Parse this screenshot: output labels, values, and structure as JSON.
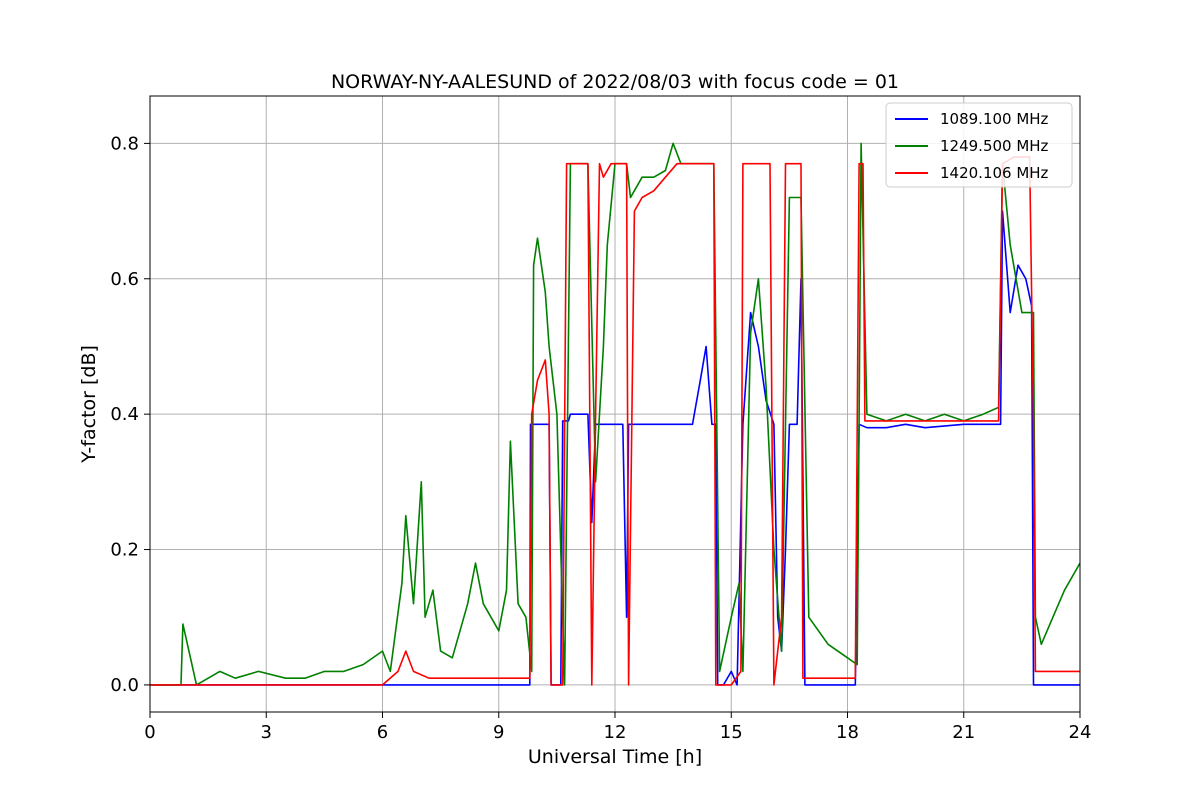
{
  "chart_data": {
    "type": "line",
    "title": "NORWAY-NY-AALESUND of 2022/08/03 with focus code = 01",
    "xlabel": "Universal Time [h]",
    "ylabel": "Y-factor [dB]",
    "xlim": [
      0,
      24
    ],
    "ylim": [
      -0.04,
      0.87
    ],
    "x_ticks": [
      0,
      3,
      6,
      9,
      12,
      15,
      18,
      21,
      24
    ],
    "x_tick_labels": [
      "0",
      "3",
      "6",
      "9",
      "12",
      "15",
      "18",
      "21",
      "24"
    ],
    "y_ticks": [
      0.0,
      0.2,
      0.4,
      0.6,
      0.8
    ],
    "y_tick_labels": [
      "0.0",
      "0.2",
      "0.4",
      "0.6",
      "0.8"
    ],
    "grid": true,
    "legend_position": "top-right",
    "series": [
      {
        "name": "1089.100 MHz",
        "color": "#0000ff",
        "x": [
          0,
          9.8,
          9.82,
          10.3,
          10.35,
          10.6,
          10.65,
          10.8,
          10.85,
          11.3,
          11.4,
          11.5,
          11.55,
          12.2,
          12.3,
          12.35,
          13.0,
          14.0,
          14.2,
          14.35,
          14.5,
          14.6,
          14.65,
          14.8,
          15.0,
          15.15,
          15.3,
          15.5,
          15.7,
          15.9,
          16.1,
          16.2,
          16.3,
          16.4,
          16.5,
          16.7,
          16.8,
          16.9,
          18.2,
          18.3,
          18.5,
          19.0,
          19.5,
          20.0,
          21.0,
          21.95,
          22.0,
          22.2,
          22.4,
          22.6,
          22.75,
          22.8,
          24
        ],
        "y": [
          0,
          0,
          0.385,
          0.385,
          0.0,
          0.0,
          0.39,
          0.39,
          0.4,
          0.4,
          0.24,
          0.385,
          0.385,
          0.385,
          0.1,
          0.385,
          0.385,
          0.385,
          0.45,
          0.5,
          0.385,
          0.385,
          0.0,
          0.0,
          0.02,
          0.0,
          0.385,
          0.55,
          0.5,
          0.42,
          0.385,
          0.1,
          0.05,
          0.2,
          0.385,
          0.385,
          0.6,
          0.0,
          0.0,
          0.385,
          0.38,
          0.38,
          0.385,
          0.38,
          0.385,
          0.385,
          0.7,
          0.55,
          0.62,
          0.6,
          0.56,
          0.0,
          0.0
        ]
      },
      {
        "name": "1249.500 MHz",
        "color": "#008000",
        "x": [
          0,
          0.6,
          0.8,
          0.85,
          1.2,
          1.8,
          2.2,
          2.8,
          3.5,
          4.0,
          4.5,
          5.0,
          5.5,
          6.0,
          6.2,
          6.5,
          6.6,
          6.8,
          7.0,
          7.1,
          7.3,
          7.5,
          7.8,
          8.0,
          8.2,
          8.4,
          8.6,
          8.8,
          9.0,
          9.2,
          9.3,
          9.5,
          9.7,
          9.85,
          9.9,
          10.0,
          10.2,
          10.3,
          10.5,
          10.7,
          10.85,
          11.0,
          11.3,
          11.5,
          11.7,
          11.8,
          12.0,
          12.3,
          12.4,
          12.7,
          13.0,
          13.3,
          13.5,
          13.7,
          14.0,
          14.3,
          14.55,
          14.7,
          15.0,
          15.2,
          15.3,
          15.5,
          15.7,
          15.9,
          16.1,
          16.3,
          16.5,
          16.8,
          17.0,
          17.5,
          18.0,
          18.25,
          18.3,
          18.35,
          18.5,
          19.0,
          19.5,
          20.0,
          20.5,
          21.0,
          21.5,
          21.9,
          22.0,
          22.2,
          22.5,
          22.8,
          22.85,
          23.0,
          23.3,
          23.6,
          24
        ],
        "y": [
          0,
          0.0,
          0.0,
          0.09,
          0.0,
          0.02,
          0.01,
          0.02,
          0.01,
          0.01,
          0.02,
          0.02,
          0.03,
          0.05,
          0.02,
          0.15,
          0.25,
          0.12,
          0.3,
          0.1,
          0.14,
          0.05,
          0.04,
          0.08,
          0.12,
          0.18,
          0.12,
          0.1,
          0.08,
          0.14,
          0.36,
          0.12,
          0.1,
          0.02,
          0.62,
          0.66,
          0.58,
          0.5,
          0.4,
          0.0,
          0.77,
          0.77,
          0.77,
          0.3,
          0.5,
          0.65,
          0.77,
          0.77,
          0.72,
          0.75,
          0.75,
          0.76,
          0.8,
          0.77,
          0.77,
          0.77,
          0.77,
          0.02,
          0.1,
          0.15,
          0.02,
          0.52,
          0.6,
          0.44,
          0.2,
          0.05,
          0.72,
          0.72,
          0.1,
          0.06,
          0.04,
          0.03,
          0.39,
          0.8,
          0.4,
          0.39,
          0.4,
          0.39,
          0.4,
          0.39,
          0.4,
          0.41,
          0.77,
          0.65,
          0.55,
          0.55,
          0.1,
          0.06,
          0.1,
          0.14,
          0.18
        ]
      },
      {
        "name": "1420.106 MHz",
        "color": "#ff0000",
        "x": [
          0,
          6.0,
          6.4,
          6.6,
          6.8,
          7.2,
          8.0,
          9.0,
          9.8,
          9.85,
          10.0,
          10.2,
          10.3,
          10.35,
          10.6,
          10.65,
          10.75,
          10.8,
          11.2,
          11.3,
          11.4,
          11.5,
          11.6,
          11.7,
          11.9,
          12.1,
          12.3,
          12.35,
          12.5,
          12.7,
          13.0,
          13.3,
          13.6,
          14.0,
          14.4,
          14.55,
          14.6,
          14.7,
          15.0,
          15.25,
          15.3,
          15.4,
          15.6,
          15.7,
          16.0,
          16.1,
          16.2,
          16.3,
          16.4,
          16.5,
          16.8,
          16.85,
          17.5,
          18.2,
          18.25,
          18.3,
          18.4,
          18.45,
          19.0,
          20.0,
          21.0,
          21.9,
          22.0,
          22.3,
          22.7,
          22.8,
          22.85,
          23.5,
          24
        ],
        "y": [
          0,
          0.0,
          0.02,
          0.05,
          0.02,
          0.01,
          0.01,
          0.01,
          0.01,
          0.4,
          0.45,
          0.48,
          0.4,
          0.0,
          0.0,
          0.0,
          0.77,
          0.77,
          0.77,
          0.77,
          0.0,
          0.4,
          0.77,
          0.75,
          0.77,
          0.77,
          0.77,
          0.0,
          0.7,
          0.72,
          0.73,
          0.75,
          0.77,
          0.77,
          0.77,
          0.77,
          0.0,
          0.0,
          0.0,
          0.02,
          0.77,
          0.77,
          0.77,
          0.77,
          0.77,
          0.0,
          0.05,
          0.1,
          0.77,
          0.77,
          0.77,
          0.01,
          0.01,
          0.01,
          0.38,
          0.77,
          0.77,
          0.39,
          0.39,
          0.39,
          0.39,
          0.39,
          0.77,
          0.78,
          0.78,
          0.39,
          0.02,
          0.02,
          0.02
        ]
      }
    ]
  }
}
